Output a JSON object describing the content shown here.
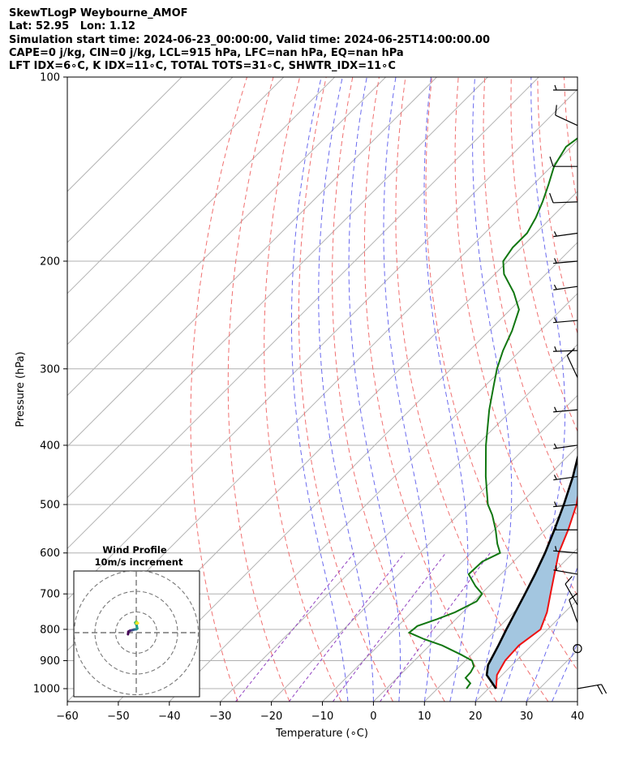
{
  "header": {
    "line1": "SkewTLogP Weybourne_AMOF",
    "line2": "Lat: 52.95   Lon: 1.12",
    "line3": "Simulation start time: 2024-06-23_00:00:00, Valid time: 2024-06-25T14:00:00.00",
    "line4": "CAPE=0 j/kg, CIN=0 j/kg, LCL=915 hPa, LFC=nan hPa, EQ=nan hPa",
    "line5": "LFT IDX=6∘C, K IDX=11∘C, TOTAL TOTS=31∘C, SHWTR_IDX=11∘C"
  },
  "chart_data": {
    "type": "line",
    "subtype": "skew-t log-p",
    "xlabel": "Temperature (∘C)",
    "ylabel": "Pressure (hPa)",
    "xlim": [
      -60,
      40
    ],
    "ylim": [
      1050,
      100
    ],
    "y_scale": "log",
    "grid": true,
    "x_ticks": [
      -60,
      -50,
      -40,
      -30,
      -20,
      -10,
      0,
      10,
      20,
      30,
      40
    ],
    "y_ticks": [
      1000,
      900,
      800,
      700,
      600,
      500,
      400,
      300,
      200,
      100
    ],
    "series": [
      {
        "role": "temperature",
        "color": "#ee1111",
        "points": [
          [
            1000,
            21.5
          ],
          [
            950,
            19.0
          ],
          [
            900,
            17.8
          ],
          [
            850,
            17.5
          ],
          [
            800,
            18.6
          ],
          [
            750,
            16.5
          ],
          [
            700,
            13.6
          ],
          [
            650,
            10.5
          ],
          [
            600,
            7.2
          ],
          [
            550,
            4.5
          ],
          [
            500,
            1.2
          ],
          [
            450,
            -3.5
          ],
          [
            400,
            -8.7
          ],
          [
            350,
            -14.9
          ],
          [
            300,
            -21.7
          ],
          [
            270,
            -26.2
          ],
          [
            250,
            -29.6
          ],
          [
            230,
            -33.8
          ],
          [
            210,
            -37.0
          ],
          [
            200,
            -38.4
          ],
          [
            190,
            -39.8
          ],
          [
            180,
            -40.5
          ],
          [
            170,
            -40.2
          ],
          [
            160,
            -40.5
          ],
          [
            150,
            -41.4
          ],
          [
            140,
            -42.7
          ],
          [
            130,
            -45.2
          ],
          [
            120,
            -48.6
          ],
          [
            110,
            -51.0
          ],
          [
            100,
            -53.5
          ]
        ]
      },
      {
        "role": "dewpoint",
        "color": "#117711",
        "points": [
          [
            1000,
            15.7
          ],
          [
            980,
            15.4
          ],
          [
            960,
            13.4
          ],
          [
            940,
            13.3
          ],
          [
            920,
            12.8
          ],
          [
            900,
            11.3
          ],
          [
            880,
            8.0
          ],
          [
            850,
            2.5
          ],
          [
            830,
            -2.3
          ],
          [
            810,
            -6.5
          ],
          [
            790,
            -6.2
          ],
          [
            770,
            -3.7
          ],
          [
            750,
            -1.5
          ],
          [
            720,
            0.6
          ],
          [
            700,
            0.2
          ],
          [
            680,
            -2.6
          ],
          [
            650,
            -6.3
          ],
          [
            620,
            -6.1
          ],
          [
            600,
            -4.3
          ],
          [
            580,
            -6.6
          ],
          [
            550,
            -9.7
          ],
          [
            520,
            -13.3
          ],
          [
            500,
            -16.2
          ],
          [
            450,
            -22.1
          ],
          [
            400,
            -28.2
          ],
          [
            350,
            -34.5
          ],
          [
            320,
            -38.3
          ],
          [
            300,
            -41.0
          ],
          [
            280,
            -43.4
          ],
          [
            260,
            -45.5
          ],
          [
            240,
            -48.3
          ],
          [
            225,
            -52.7
          ],
          [
            210,
            -58.2
          ],
          [
            200,
            -60.9
          ],
          [
            190,
            -61.7
          ],
          [
            180,
            -61.7
          ],
          [
            170,
            -63.0
          ],
          [
            160,
            -64.8
          ],
          [
            150,
            -67.0
          ],
          [
            140,
            -69.5
          ],
          [
            130,
            -71.0
          ],
          [
            120,
            -69.5
          ],
          [
            110,
            -67.0
          ],
          [
            100,
            -64.0
          ]
        ]
      },
      {
        "role": "parcel",
        "color": "#000000",
        "points": [
          [
            1000,
            21.5
          ],
          [
            950,
            17.0
          ],
          [
            915,
            15.3
          ],
          [
            900,
            14.9
          ],
          [
            850,
            13.5
          ],
          [
            800,
            11.9
          ],
          [
            750,
            10.3
          ],
          [
            700,
            8.6
          ],
          [
            650,
            6.7
          ],
          [
            600,
            4.5
          ],
          [
            550,
            1.8
          ],
          [
            500,
            -1.3
          ],
          [
            450,
            -5.0
          ],
          [
            400,
            -9.6
          ],
          [
            350,
            -15.3
          ],
          [
            300,
            -22.5
          ],
          [
            250,
            -31.5
          ],
          [
            200,
            -42.3
          ],
          [
            170,
            -49.7
          ],
          [
            150,
            -55.0
          ],
          [
            130,
            -60.8
          ],
          [
            115,
            -65.7
          ],
          [
            100,
            -71.2
          ]
        ]
      }
    ],
    "shaded_region": "between temperature and parcel (blue fill)",
    "background_lines": [
      "dry adiabats (red dashed)",
      "moist adiabats (blue dashed)",
      "mixing ratio lines (purple dashed)",
      "isotherms (gray skewed)"
    ],
    "wind_barbs": [
      {
        "p": 1000,
        "spd": 20,
        "dir": 80
      },
      {
        "p": 860,
        "spd": 0,
        "dir": 0
      },
      {
        "p": 780,
        "spd": 10,
        "dir": 340
      },
      {
        "p": 730,
        "spd": 10,
        "dir": 330
      },
      {
        "p": 650,
        "spd": 5,
        "dir": 280
      },
      {
        "p": 600,
        "spd": 5,
        "dir": 275
      },
      {
        "p": 550,
        "spd": 5,
        "dir": 270
      },
      {
        "p": 500,
        "spd": 5,
        "dir": 265
      },
      {
        "p": 450,
        "spd": 5,
        "dir": 262
      },
      {
        "p": 400,
        "spd": 5,
        "dir": 262
      },
      {
        "p": 350,
        "spd": 5,
        "dir": 265
      },
      {
        "p": 310,
        "spd": 10,
        "dir": 335
      },
      {
        "p": 280,
        "spd": 5,
        "dir": 268
      },
      {
        "p": 250,
        "spd": 5,
        "dir": 265
      },
      {
        "p": 220,
        "spd": 5,
        "dir": 262
      },
      {
        "p": 200,
        "spd": 5,
        "dir": 265
      },
      {
        "p": 180,
        "spd": 5,
        "dir": 262
      },
      {
        "p": 160,
        "spd": 10,
        "dir": 268
      },
      {
        "p": 140,
        "spd": 10,
        "dir": 270
      },
      {
        "p": 120,
        "spd": 10,
        "dir": 295
      },
      {
        "p": 105,
        "spd": 5,
        "dir": 270
      }
    ],
    "inset": {
      "title_line1": "Wind Profile",
      "title_line2": "10m/s increment",
      "type": "hodograph",
      "rings_ms": [
        10,
        20,
        30
      ],
      "points": [
        [
          -4.0,
          -0.8
        ],
        [
          -3.8,
          0.5
        ],
        [
          -3.0,
          1.0
        ],
        [
          -2.0,
          1.2
        ],
        [
          -1.0,
          1.5
        ],
        [
          0.0,
          1.6
        ],
        [
          0.5,
          2.0
        ],
        [
          0.2,
          3.5
        ],
        [
          -0.5,
          4.8
        ],
        [
          0.0,
          5.4
        ],
        [
          0.3,
          5.0
        ],
        [
          0.8,
          4.6
        ],
        [
          0.0,
          4.4
        ]
      ]
    }
  }
}
